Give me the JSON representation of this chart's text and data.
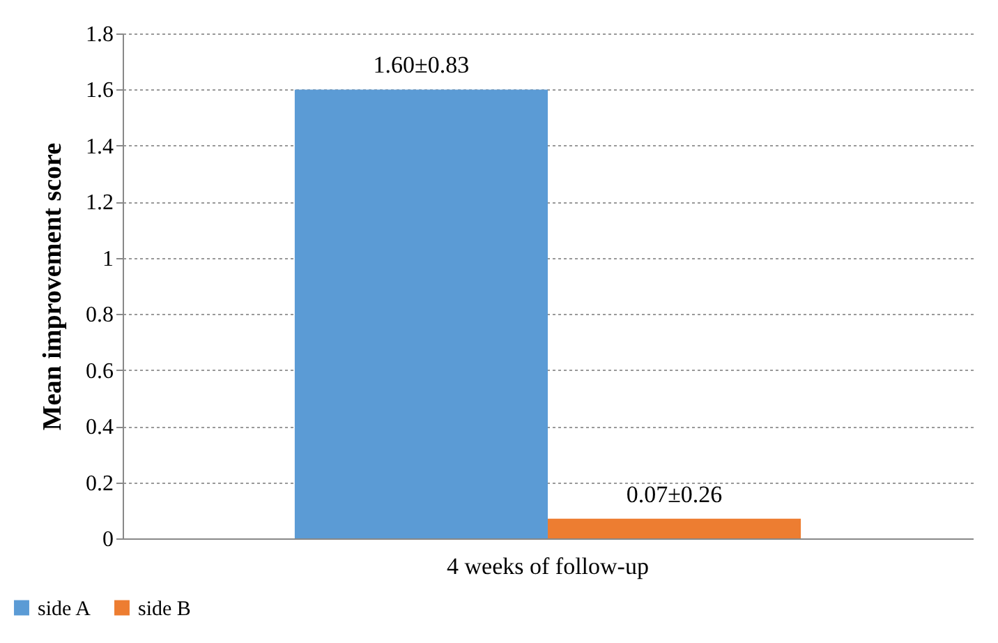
{
  "chart_data": {
    "type": "bar",
    "ylabel": "Mean improvement score",
    "categories": [
      "4 weeks of follow-up"
    ],
    "series": [
      {
        "name": "side A",
        "color": "#5b9bd5",
        "values": [
          1.6
        ],
        "value_labels": [
          "1.60±0.83"
        ]
      },
      {
        "name": "side B",
        "color": "#ed7d31",
        "values": [
          0.07
        ],
        "value_labels": [
          "0.07±0.26"
        ]
      }
    ],
    "ylim": [
      0,
      1.8
    ],
    "yticks": [
      0,
      0.2,
      0.4,
      0.6,
      0.8,
      1,
      1.2,
      1.4,
      1.6,
      1.8
    ],
    "grid": "y",
    "legend": "bottom left"
  }
}
